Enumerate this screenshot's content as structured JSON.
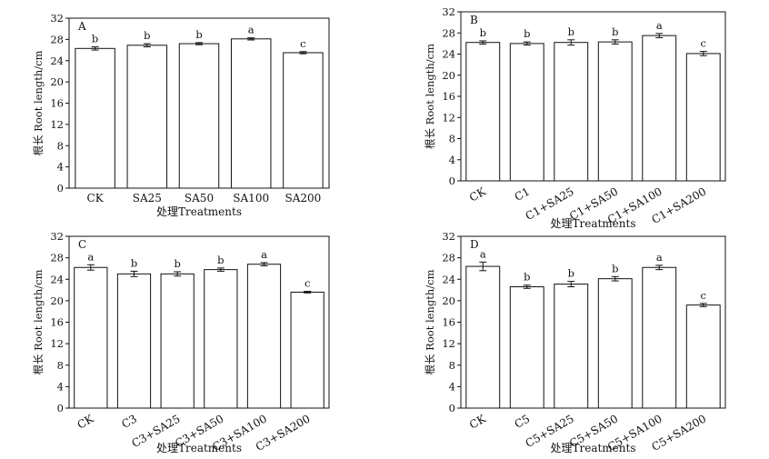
{
  "figure": {
    "panels": [
      "A",
      "B",
      "C",
      "D"
    ]
  },
  "chart_data": [
    {
      "panel_label": "A",
      "type": "bar",
      "categories": [
        "CK",
        "SA25",
        "SA50",
        "SA100",
        "SA200"
      ],
      "values": [
        26.3,
        26.9,
        27.2,
        28.1,
        25.5
      ],
      "errors": [
        0.3,
        0.3,
        0.2,
        0.2,
        0.2
      ],
      "letters": [
        "b",
        "b",
        "b",
        "a",
        "c"
      ],
      "xlabel": "处理Treatments",
      "ylabel": "根长 Root length/cm",
      "ylim": [
        0,
        32
      ],
      "yticks": [
        0,
        4,
        8,
        12,
        16,
        20,
        24,
        28,
        32
      ],
      "rotated_xticks": false
    },
    {
      "panel_label": "B",
      "type": "bar",
      "categories": [
        "CK",
        "C1",
        "C1+SA25",
        "C1+SA50",
        "C1+SA100",
        "C1+SA200"
      ],
      "values": [
        26.2,
        26.0,
        26.2,
        26.3,
        27.5,
        24.1
      ],
      "errors": [
        0.3,
        0.3,
        0.5,
        0.4,
        0.4,
        0.4
      ],
      "letters": [
        "b",
        "b",
        "b",
        "b",
        "a",
        "c"
      ],
      "xlabel": "处理Treatments",
      "ylabel": "根长 Root length/cm",
      "ylim": [
        0,
        32
      ],
      "yticks": [
        0,
        4,
        8,
        12,
        16,
        20,
        24,
        28,
        32
      ],
      "rotated_xticks": true
    },
    {
      "panel_label": "C",
      "type": "bar",
      "categories": [
        "CK",
        "C3",
        "C3+SA25",
        "C3+SA50",
        "C3+SA100",
        "C3+SA200"
      ],
      "values": [
        26.2,
        25.0,
        25.0,
        25.8,
        26.8,
        21.6
      ],
      "errors": [
        0.5,
        0.5,
        0.4,
        0.3,
        0.3,
        0.15
      ],
      "letters": [
        "a",
        "b",
        "b",
        "b",
        "a",
        "c"
      ],
      "xlabel": "处理Treatments",
      "ylabel": "根长 Root length/cm",
      "ylim": [
        0,
        32
      ],
      "yticks": [
        0,
        4,
        8,
        12,
        16,
        20,
        24,
        28,
        32
      ],
      "rotated_xticks": true
    },
    {
      "panel_label": "D",
      "type": "bar",
      "categories": [
        "CK",
        "C5",
        "C5+SA25",
        "C5+SA50",
        "C5+SA100",
        "C5+SA200"
      ],
      "values": [
        26.4,
        22.6,
        23.1,
        24.1,
        26.2,
        19.2
      ],
      "errors": [
        0.8,
        0.3,
        0.5,
        0.4,
        0.4,
        0.3
      ],
      "letters": [
        "a",
        "b",
        "b",
        "b",
        "a",
        "c"
      ],
      "xlabel": "处理Treatments",
      "ylabel": "根长 Root length/cm",
      "ylim": [
        0,
        32
      ],
      "yticks": [
        0,
        4,
        8,
        12,
        16,
        20,
        24,
        28,
        32
      ],
      "rotated_xticks": true
    }
  ]
}
